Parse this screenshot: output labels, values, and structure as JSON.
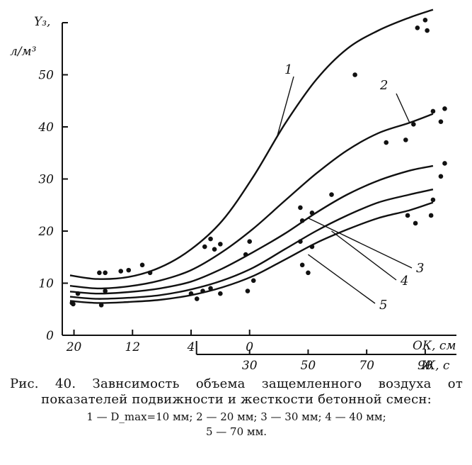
{
  "chart_data": {
    "type": "scatter",
    "ylabel_line1": "Y₃,",
    "ylabel_line2": "л/м³",
    "y_ticks": [
      0,
      10,
      20,
      30,
      40,
      50
    ],
    "ylim": [
      0,
      60
    ],
    "x_axis_ok": {
      "label": "ОК, см",
      "tick_labels": [
        "20",
        "12",
        "4",
        "0"
      ],
      "tick_x": [
        0,
        15,
        30,
        45
      ]
    },
    "x_axis_zh": {
      "label": "Ж, с",
      "tick_labels": [
        "30",
        "50",
        "70",
        "90"
      ],
      "tick_x": [
        45,
        60,
        75,
        90
      ]
    },
    "xlim": [
      -3,
      98
    ],
    "series": [
      {
        "name": "1",
        "curve": [
          [
            -1,
            11.5
          ],
          [
            6,
            10.8
          ],
          [
            14,
            11.2
          ],
          [
            22,
            13
          ],
          [
            30,
            16.5
          ],
          [
            38,
            22
          ],
          [
            46,
            30.5
          ],
          [
            54,
            40.5
          ],
          [
            62,
            49
          ],
          [
            70,
            55
          ],
          [
            78,
            58.5
          ],
          [
            86,
            61
          ],
          [
            92,
            62.5
          ]
        ],
        "points": [
          [
            6.5,
            12
          ],
          [
            8,
            12
          ],
          [
            12,
            12.3
          ],
          [
            14,
            12.5
          ],
          [
            17.5,
            13.5
          ],
          [
            19.5,
            12
          ],
          [
            33.5,
            17
          ],
          [
            35,
            18.5
          ],
          [
            36,
            16.5
          ],
          [
            37.5,
            17.5
          ],
          [
            44,
            15.5
          ],
          [
            45,
            18
          ],
          [
            72,
            50
          ],
          [
            88,
            59
          ],
          [
            90,
            60.5
          ],
          [
            90.5,
            58.5
          ]
        ]
      },
      {
        "name": "2",
        "curve": [
          [
            -1,
            9.5
          ],
          [
            6,
            9
          ],
          [
            14,
            9.4
          ],
          [
            22,
            10.5
          ],
          [
            30,
            12.5
          ],
          [
            38,
            16
          ],
          [
            46,
            20.5
          ],
          [
            54,
            25.8
          ],
          [
            62,
            31
          ],
          [
            70,
            35.5
          ],
          [
            78,
            38.8
          ],
          [
            86,
            40.8
          ],
          [
            92,
            42.5
          ]
        ],
        "points": [
          [
            -0.5,
            6.2
          ],
          [
            1,
            8
          ],
          [
            8,
            8.5
          ],
          [
            30,
            8
          ],
          [
            31.5,
            7
          ],
          [
            33,
            8.5
          ],
          [
            35,
            9
          ],
          [
            37.5,
            8
          ],
          [
            58,
            24.5
          ],
          [
            58.5,
            22
          ],
          [
            61,
            23.5
          ],
          [
            66,
            27
          ],
          [
            80,
            37
          ],
          [
            85,
            37.5
          ],
          [
            87,
            40.5
          ],
          [
            92,
            43
          ],
          [
            94,
            41
          ],
          [
            95,
            43.5
          ]
        ]
      },
      {
        "name": "3",
        "curve": [
          [
            -1,
            8.4
          ],
          [
            6,
            8
          ],
          [
            14,
            8.3
          ],
          [
            22,
            9
          ],
          [
            30,
            10.3
          ],
          [
            38,
            12.8
          ],
          [
            46,
            16
          ],
          [
            54,
            19.5
          ],
          [
            62,
            23.5
          ],
          [
            70,
            27
          ],
          [
            78,
            29.7
          ],
          [
            86,
            31.6
          ],
          [
            92,
            32.5
          ]
        ],
        "points": [
          [
            46,
            10.5
          ],
          [
            58,
            18
          ],
          [
            61,
            17
          ],
          [
            94,
            30.5
          ],
          [
            95,
            33
          ]
        ]
      },
      {
        "name": "4",
        "curve": [
          [
            -1,
            7.4
          ],
          [
            6,
            7
          ],
          [
            14,
            7.2
          ],
          [
            22,
            7.7
          ],
          [
            30,
            8.8
          ],
          [
            38,
            10.5
          ],
          [
            46,
            13
          ],
          [
            54,
            16.5
          ],
          [
            62,
            20
          ],
          [
            70,
            23
          ],
          [
            78,
            25.5
          ],
          [
            86,
            27
          ],
          [
            92,
            28
          ]
        ],
        "points": [
          [
            44.5,
            8.5
          ],
          [
            58.5,
            13.5
          ],
          [
            60,
            12
          ],
          [
            85.5,
            23
          ]
        ]
      },
      {
        "name": "5",
        "curve": [
          [
            -1,
            6.6
          ],
          [
            6,
            6.2
          ],
          [
            14,
            6.4
          ],
          [
            22,
            6.8
          ],
          [
            30,
            7.7
          ],
          [
            38,
            9.2
          ],
          [
            46,
            11.4
          ],
          [
            54,
            14.5
          ],
          [
            62,
            17.7
          ],
          [
            70,
            20.3
          ],
          [
            78,
            22.5
          ],
          [
            86,
            24
          ],
          [
            92,
            25.5
          ]
        ],
        "points": [
          [
            -0.2,
            6
          ],
          [
            7,
            5.8
          ],
          [
            87.5,
            21.5
          ],
          [
            91.5,
            23
          ],
          [
            92,
            26
          ]
        ]
      }
    ],
    "curve_labels": [
      "1",
      "2",
      "3",
      "4",
      "5"
    ],
    "grid": false
  },
  "caption": {
    "title": "Рис. 40. Завнсимость объема защемленного воздуха от показателей подвижности и жесткости бетонной смесн:",
    "legend_line1": "1 — D_max=10 мм; 2 — 20 мм; 3 — 30 мм; 4 — 40 мм;",
    "legend_line2": "5 — 70 мм."
  }
}
